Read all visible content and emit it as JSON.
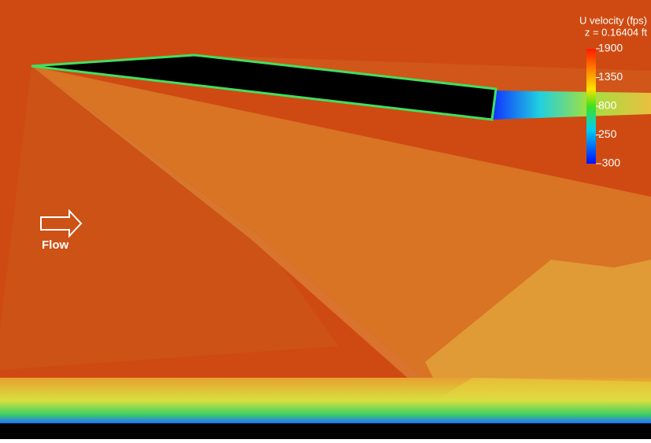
{
  "colorbar": {
    "title": "U velocity (fps)",
    "subtitle": "z = 0.16404 ft",
    "range": [
      -300,
      1900
    ],
    "ticks": [
      1900,
      1350,
      800,
      250,
      -300
    ]
  },
  "annotation": {
    "label": "Flow"
  }
}
